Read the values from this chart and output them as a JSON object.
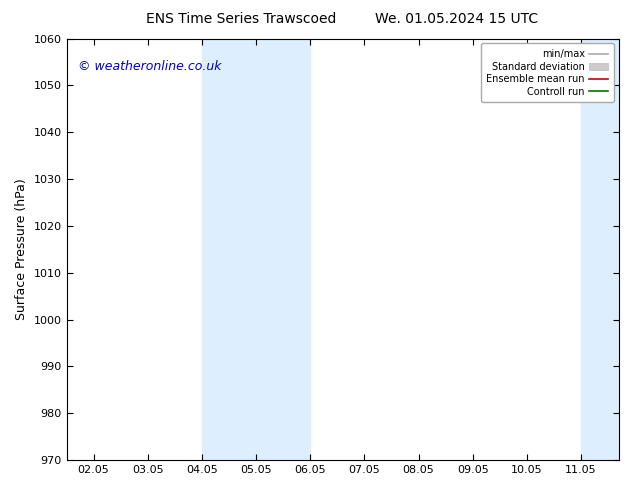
{
  "title_left": "ENS Time Series Trawscoed",
  "title_right": "We. 01.05.2024 15 UTC",
  "ylabel": "Surface Pressure (hPa)",
  "ylim": [
    970,
    1060
  ],
  "yticks": [
    970,
    980,
    990,
    1000,
    1010,
    1020,
    1030,
    1040,
    1050,
    1060
  ],
  "xtick_labels": [
    "02.05",
    "03.05",
    "04.05",
    "05.05",
    "06.05",
    "07.05",
    "08.05",
    "09.05",
    "10.05",
    "11.05"
  ],
  "xtick_positions": [
    0,
    1,
    2,
    3,
    4,
    5,
    6,
    7,
    8,
    9
  ],
  "xlim": [
    -0.5,
    9.7
  ],
  "shaded_bands": [
    {
      "x_start": 2,
      "x_end": 3,
      "color": "#ddeeff"
    },
    {
      "x_start": 3,
      "x_end": 4,
      "color": "#ddeeff"
    },
    {
      "x_start": 9,
      "x_end": 9.7,
      "color": "#ddeeff"
    }
  ],
  "copyright_text": "© weatheronline.co.uk",
  "copyright_color": "#0000cc",
  "background_color": "#ffffff",
  "legend_items": [
    {
      "label": "min/max",
      "color": "#aaaaaa",
      "lw": 1.2,
      "ls": "-",
      "type": "line"
    },
    {
      "label": "Standard deviation",
      "color": "#cccccc",
      "lw": 8,
      "ls": "-",
      "type": "patch"
    },
    {
      "label": "Ensemble mean run",
      "color": "#cc0000",
      "lw": 1.2,
      "ls": "-",
      "type": "line"
    },
    {
      "label": "Controll run",
      "color": "#007700",
      "lw": 1.2,
      "ls": "-",
      "type": "line"
    }
  ],
  "title_fontsize": 10,
  "tick_fontsize": 8,
  "ylabel_fontsize": 9,
  "copyright_fontsize": 9,
  "fig_width": 6.34,
  "fig_height": 4.9,
  "dpi": 100
}
